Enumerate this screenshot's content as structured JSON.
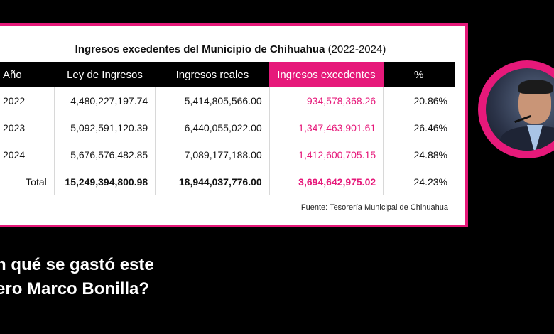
{
  "table": {
    "title": "Ingresos excedentes del Municipio de Chihuahua",
    "title_years": "(2022-2024)",
    "headers": [
      "Año",
      "Ley de Ingresos",
      "Ingresos reales",
      "Ingresos excedentes",
      "%"
    ],
    "rows": [
      {
        "year": "2022",
        "ley": "4,480,227,197.74",
        "reales": "5,414,805,566.00",
        "excedentes": "934,578,368.26",
        "pct": "20.86%"
      },
      {
        "year": "2023",
        "ley": "5,092,591,120.39",
        "reales": "6,440,055,022.00",
        "excedentes": "1,347,463,901.61",
        "pct": "26.46%"
      },
      {
        "year": "2024",
        "ley": "5,676,576,482.85",
        "reales": "7,089,177,188.00",
        "excedentes": "1,412,600,705.15",
        "pct": "24.88%"
      }
    ],
    "total": {
      "label": "Total",
      "ley": "15,249,394,800.98",
      "reales": "18,944,037,776.00",
      "excedentes": "3,694,642,975.02",
      "pct": "24.23%"
    },
    "source": "Fuente: Tesorería Municipal de Chihuahua"
  },
  "caption": {
    "line1": "n qué se gastó este",
    "line2": "ero Marco Bonilla?"
  },
  "colors": {
    "accent": "#e6197a",
    "background": "#000000"
  }
}
